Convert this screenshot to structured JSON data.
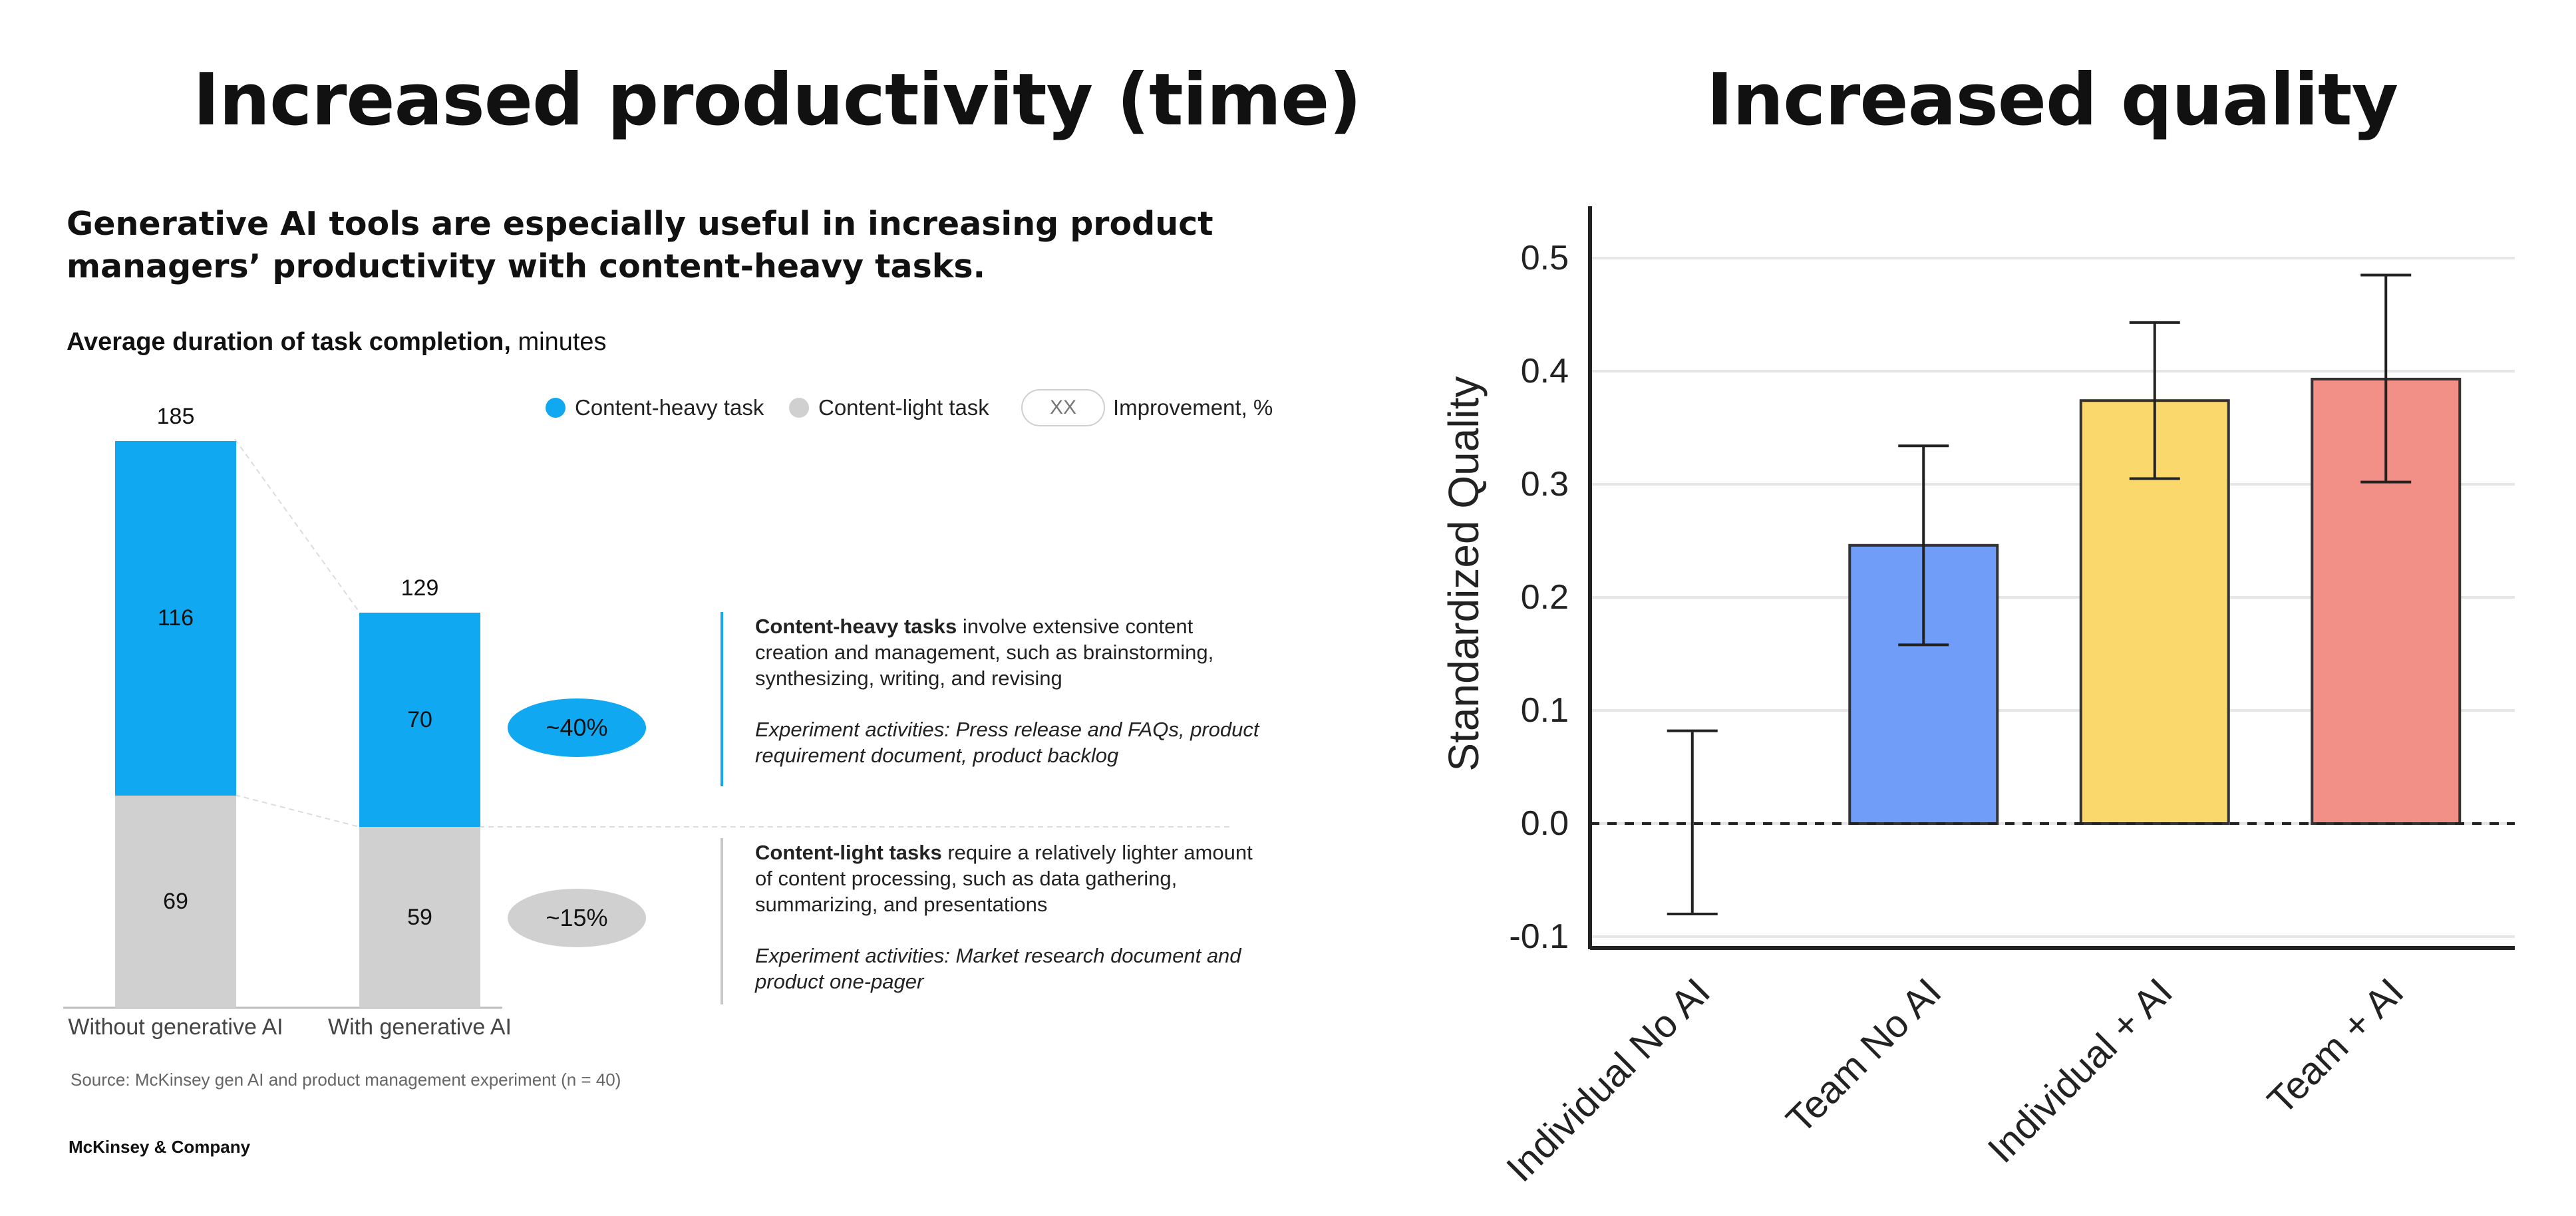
{
  "left": {
    "title": "Increased productivity (time)",
    "subtitle": "Generative AI tools are especially useful in increasing product managers’ productivity with content-heavy tasks.",
    "metric_bold": "Average duration of task completion,",
    "metric_unit": " minutes",
    "legend": {
      "heavy": "Content-heavy task",
      "light": "Content-light task",
      "xx": "XX",
      "improvement": "Improvement, %"
    },
    "notes": {
      "heavy_lead": "Content-heavy tasks",
      "heavy_body": " involve extensive content creation and management, such as brainstorming, synthesizing, writing, and revising",
      "heavy_exp": "Experiment activities: Press release and FAQs, product requirement document, product backlog",
      "light_lead": "Content-light tasks",
      "light_body": " require a relatively lighter amount of content processing, such as data gathering, summarizing, and presentations",
      "light_exp": "Experiment activities: Market research document and product one-pager"
    },
    "source": "Source: McKinsey gen AI and product management experiment (n = 40)",
    "brand": "McKinsey & Company"
  },
  "colors": {
    "heavy": "#11a8f2",
    "light": "#d0d0d0",
    "blue_bar": "#6f9df7",
    "yellow_bar": "#fbd86b",
    "red_bar": "#f28f86"
  },
  "chart_data": [
    {
      "type": "bar",
      "stacked": true,
      "categories": [
        "Without generative AI",
        "With generative AI"
      ],
      "series": [
        {
          "name": "Content-light task",
          "values": [
            69,
            59
          ]
        },
        {
          "name": "Content-heavy task",
          "values": [
            116,
            70
          ]
        }
      ],
      "totals": [
        "185",
        "129"
      ],
      "improvements": {
        "heavy": "~40%",
        "light": "~15%"
      },
      "legend_position": "top"
    },
    {
      "type": "bar",
      "title": "Increased quality",
      "ylabel": "Standardized Quality",
      "categories": [
        "Individual No AI",
        "Team No AI",
        "Individual + AI",
        "Team + AI"
      ],
      "values": [
        0.0,
        0.246,
        0.374,
        0.393
      ],
      "error_low": [
        -0.08,
        0.158,
        0.305,
        0.302
      ],
      "error_high": [
        0.082,
        0.334,
        0.443,
        0.485
      ],
      "ylim": [
        -0.11,
        0.54
      ],
      "yticks": [
        "-0.1",
        "0.0",
        "0.1",
        "0.2",
        "0.3",
        "0.4",
        "0.5"
      ],
      "grid": true,
      "reference_line": 0
    }
  ]
}
